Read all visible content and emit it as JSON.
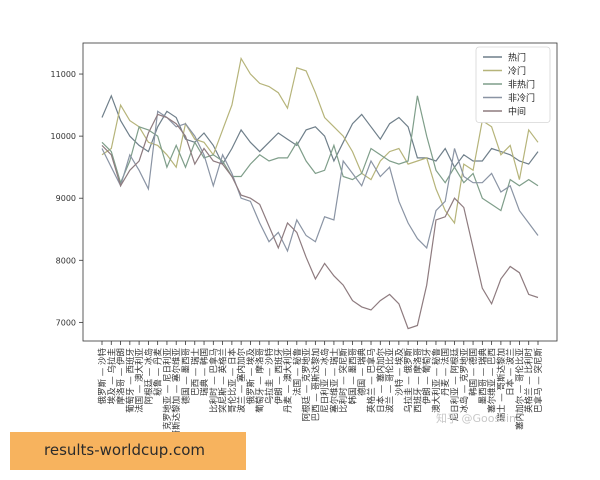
{
  "chart_data": {
    "type": "line",
    "title": "",
    "xlabel": "",
    "ylabel": "",
    "ylim": [
      6700,
      11500
    ],
    "yticks": [
      7000,
      8000,
      9000,
      10000,
      11000
    ],
    "legend_position": "top-right",
    "grid": false,
    "categories": [
      "俄罗斯 — 沙特",
      "埃及 — 乌拉圭",
      "摩洛哥 — 伊朗",
      "葡萄牙 — 西班牙",
      "法国 — 澳大利亚",
      "阿根廷 — 冰岛",
      "秘鲁 — 丹麦",
      "克罗地亚 — 尼日利亚",
      "哥斯达黎加 — 塞尔维亚",
      "德国 — 墨西哥",
      "巴西 — 瑞士",
      "瑞典 — 韩国",
      "比利时 — 巴拿马",
      "突尼斯 — 英格兰",
      "哥伦比亚 — 日本",
      "波兰 — 塞内加尔",
      "俄罗斯 — 埃及",
      "葡萄牙 — 摩洛哥",
      "乌拉圭 — 沙特",
      "伊朗 — 西班牙",
      "丹麦 — 澳大利亚",
      "法国 — 秘鲁",
      "阿根廷 — 克罗地亚",
      "巴西 — 哥斯达黎加",
      "尼日利亚 — 冰岛",
      "塞尔维亚 — 瑞士",
      "比利时 — 突尼斯",
      "韩国 — 墨西哥",
      "德国 — 瑞典",
      "英格兰 — 巴拿马",
      "日本 — 塞内加尔",
      "波兰 — 哥伦比亚",
      "沙特 — 埃及",
      "乌拉圭 — 俄罗斯",
      "西班牙 — 摩洛哥",
      "伊朗 — 葡萄牙",
      "澳大利亚 — 秘鲁",
      "丹麦 — 法国",
      "尼日利亚 — 阿根廷",
      "冰岛 — 克罗地亚",
      "韩国 — 德国",
      "墨西哥 — 瑞典",
      "塞尔维亚 — 巴西",
      "瑞士 — 哥斯达黎加",
      "日本 — 波兰",
      "塞内加尔 — 哥伦比亚",
      "英格兰 — 比利时",
      "巴拿马 — 突尼斯"
    ],
    "series": [
      {
        "name": "热门",
        "color": "#6f7f8a",
        "values": [
          10300,
          10650,
          10250,
          10000,
          9850,
          9750,
          10150,
          10400,
          10300,
          9950,
          9900,
          10050,
          9850,
          9550,
          9800,
          10100,
          9900,
          9750,
          9900,
          10050,
          9950,
          9850,
          10100,
          10150,
          10000,
          9600,
          9900,
          10200,
          10350,
          10150,
          9950,
          10200,
          10300,
          10150,
          9650,
          9650,
          9600,
          9800,
          9500,
          9700,
          9600,
          9600,
          9800,
          9750,
          9700,
          9600,
          9550,
          9750
        ]
      },
      {
        "name": "冷门",
        "color": "#b6b47a",
        "values": [
          9700,
          9800,
          10500,
          10250,
          10150,
          9900,
          9850,
          9700,
          9500,
          10200,
          9950,
          9900,
          9700,
          10100,
          10500,
          11250,
          11000,
          10850,
          10800,
          10700,
          10450,
          11100,
          11050,
          10700,
          10300,
          10150,
          10000,
          9750,
          9400,
          9300,
          9600,
          9750,
          9800,
          9550,
          9600,
          9650,
          9150,
          8800,
          8600,
          9550,
          9450,
          10250,
          10150,
          9700,
          9850,
          9300,
          10100,
          9900
        ]
      },
      {
        "name": "非热门",
        "color": "#7f9e8a",
        "values": [
          9900,
          9750,
          9250,
          9600,
          10150,
          10100,
          10000,
          9500,
          9850,
          9500,
          9900,
          9650,
          9700,
          9600,
          9350,
          9350,
          9550,
          9700,
          9600,
          9650,
          9650,
          9900,
          9600,
          9400,
          9450,
          9850,
          9350,
          9300,
          9400,
          9800,
          9700,
          9600,
          9550,
          9600,
          10650,
          10000,
          9450,
          9250,
          9500,
          9250,
          9400,
          9000,
          8900,
          8800,
          9300,
          9200,
          9300,
          9200
        ]
      },
      {
        "name": "非冷门",
        "color": "#8a94a4",
        "values": [
          9800,
          9500,
          9200,
          9700,
          9450,
          9150,
          10400,
          10300,
          10150,
          10200,
          10000,
          9700,
          9200,
          9700,
          9400,
          9000,
          8950,
          8600,
          8300,
          8450,
          8150,
          8650,
          8400,
          8300,
          8700,
          8650,
          9600,
          9400,
          9200,
          9600,
          9350,
          9500,
          8950,
          8600,
          8350,
          8200,
          8800,
          8950,
          9800,
          9350,
          9250,
          9250,
          9400,
          9100,
          9200,
          8800,
          8600,
          8400
        ]
      },
      {
        "name": "中间",
        "color": "#8e7b7f",
        "values": [
          9850,
          9700,
          9200,
          9450,
          9600,
          10050,
          10350,
          10300,
          10200,
          10000,
          9550,
          9800,
          9600,
          9550,
          9350,
          9050,
          9000,
          8900,
          8550,
          8200,
          8600,
          8450,
          8050,
          7700,
          7950,
          7750,
          7600,
          7350,
          7250,
          7200,
          7350,
          7450,
          7300,
          6900,
          6950,
          7600,
          8650,
          8700,
          9000,
          8850,
          8200,
          7550,
          7300,
          7700,
          7900,
          7800,
          7450,
          7400
        ]
      }
    ]
  },
  "overlay": {
    "watermark": "知乎 @Goossin",
    "site_banner": "results-worldcup.com"
  }
}
